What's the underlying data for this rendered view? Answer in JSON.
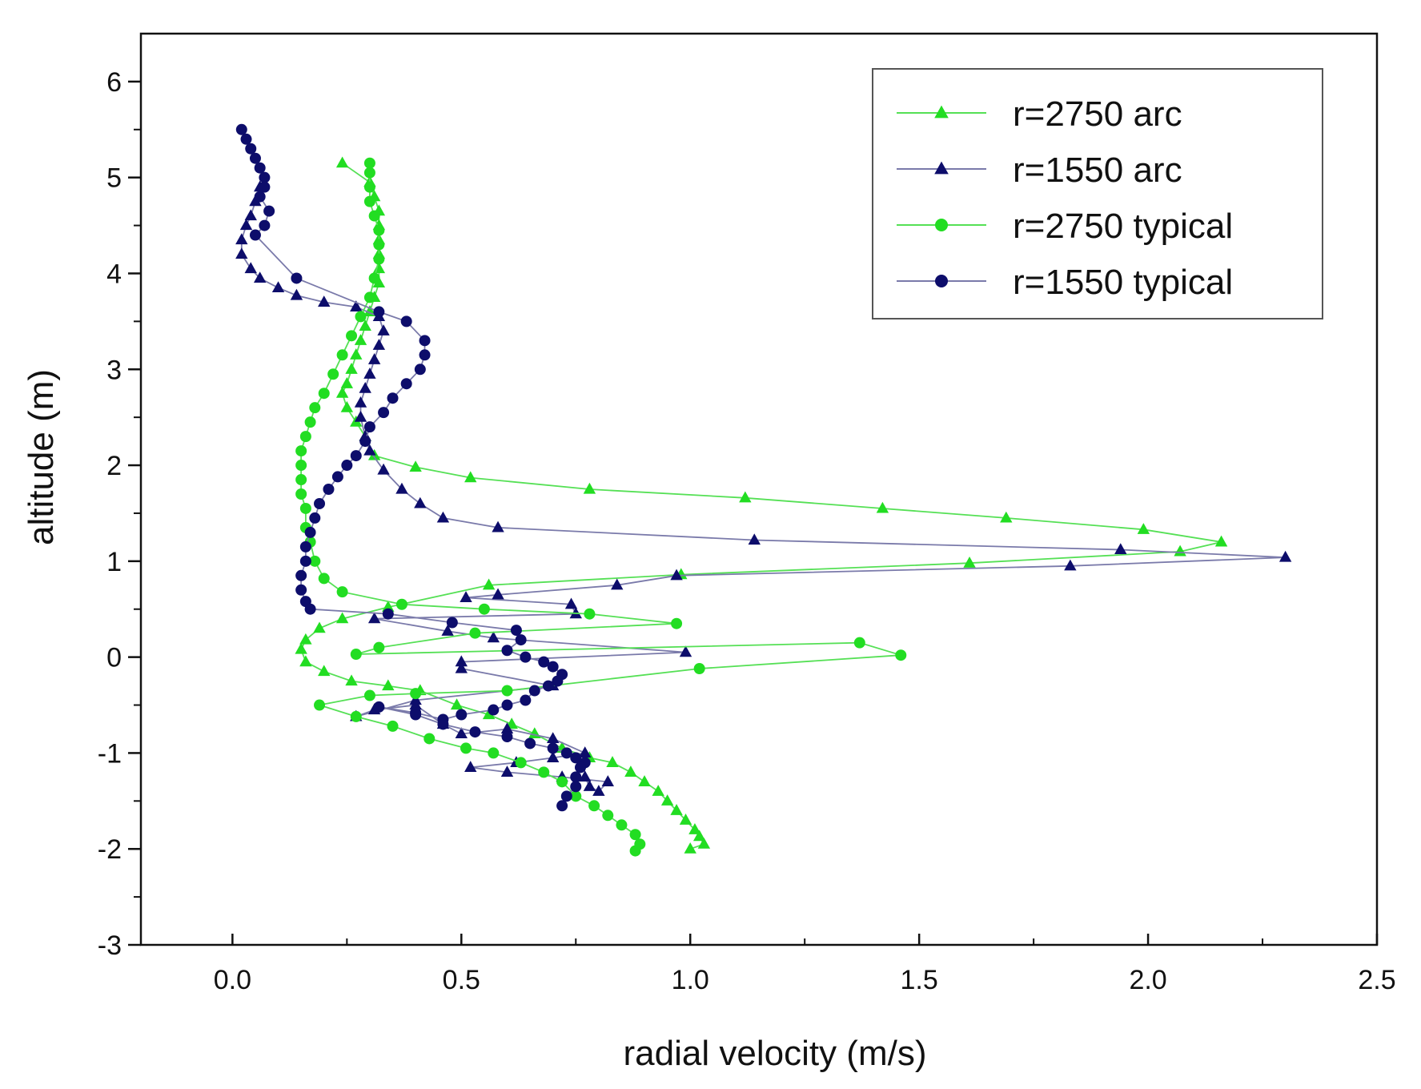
{
  "chart_data": {
    "type": "line",
    "title": "",
    "xlabel": "radial velocity (m/s)",
    "ylabel": "altitude (m)",
    "xlim": [
      -0.2,
      2.5
    ],
    "ylim": [
      -3,
      6.5
    ],
    "xticks": [
      0.0,
      0.5,
      1.0,
      1.5,
      2.0,
      2.5
    ],
    "xtick_labels": [
      "0.0",
      "0.5",
      "1.0",
      "1.5",
      "2.0",
      "2.5"
    ],
    "yticks": [
      -3,
      -2,
      -1,
      0,
      1,
      2,
      3,
      4,
      5,
      6
    ],
    "ytick_labels": [
      "-3",
      "-2",
      "-1",
      "0",
      "1",
      "2",
      "3",
      "4",
      "5",
      "6"
    ],
    "legend_position": "top-right",
    "series": [
      {
        "name": "r=2750 arc",
        "color": "#22dd22",
        "line_color": "#55e055",
        "marker": "triangle",
        "x": [
          0.24,
          0.3,
          0.31,
          0.32,
          0.32,
          0.32,
          0.32,
          0.32,
          0.32,
          0.31,
          0.3,
          0.29,
          0.28,
          0.27,
          0.26,
          0.25,
          0.24,
          0.25,
          0.27,
          0.29,
          0.31,
          0.4,
          0.52,
          0.78,
          1.12,
          1.42,
          1.69,
          1.99,
          2.16,
          2.07,
          1.61,
          0.98,
          0.56,
          0.34,
          0.24,
          0.19,
          0.16,
          0.15,
          0.16,
          0.2,
          0.26,
          0.34,
          0.41,
          0.49,
          0.56,
          0.61,
          0.66,
          0.72,
          0.78,
          0.83,
          0.87,
          0.9,
          0.93,
          0.95,
          0.97,
          0.99,
          1.01,
          1.02,
          1.03,
          1.0
        ],
        "y": [
          5.15,
          4.95,
          4.8,
          4.65,
          4.5,
          4.35,
          4.2,
          4.05,
          3.9,
          3.75,
          3.6,
          3.45,
          3.3,
          3.15,
          3.0,
          2.85,
          2.75,
          2.6,
          2.45,
          2.3,
          2.1,
          1.98,
          1.87,
          1.75,
          1.66,
          1.55,
          1.45,
          1.33,
          1.2,
          1.1,
          0.98,
          0.86,
          0.75,
          0.52,
          0.4,
          0.3,
          0.18,
          0.08,
          -0.05,
          -0.15,
          -0.25,
          -0.3,
          -0.35,
          -0.5,
          -0.6,
          -0.7,
          -0.8,
          -0.95,
          -1.05,
          -1.1,
          -1.2,
          -1.3,
          -1.4,
          -1.5,
          -1.6,
          -1.7,
          -1.8,
          -1.87,
          -1.95,
          -2.0
        ]
      },
      {
        "name": "r=1550 arc",
        "color": "#0d0d6b",
        "line_color": "#7a7aaa",
        "marker": "triangle",
        "x": [
          0.06,
          0.05,
          0.04,
          0.03,
          0.02,
          0.02,
          0.04,
          0.06,
          0.1,
          0.14,
          0.2,
          0.27,
          0.32,
          0.33,
          0.32,
          0.31,
          0.3,
          0.29,
          0.28,
          0.28,
          0.29,
          0.3,
          0.33,
          0.37,
          0.41,
          0.46,
          0.58,
          1.14,
          1.94,
          2.3,
          1.83,
          0.97,
          0.84,
          0.58,
          0.51,
          0.74,
          0.75,
          0.31,
          0.47,
          0.57,
          0.99,
          0.5,
          0.5,
          0.7,
          0.4,
          0.27,
          0.31,
          0.4,
          0.46,
          0.5,
          0.6,
          0.7,
          0.77,
          0.7,
          0.62,
          0.52,
          0.6,
          0.72,
          0.82,
          0.8,
          0.78,
          0.77
        ],
        "y": [
          4.9,
          4.75,
          4.6,
          4.5,
          4.35,
          4.2,
          4.05,
          3.95,
          3.85,
          3.77,
          3.7,
          3.65,
          3.55,
          3.4,
          3.25,
          3.1,
          2.95,
          2.8,
          2.65,
          2.5,
          2.3,
          2.15,
          1.95,
          1.75,
          1.6,
          1.45,
          1.35,
          1.22,
          1.12,
          1.04,
          0.95,
          0.85,
          0.75,
          0.65,
          0.62,
          0.55,
          0.45,
          0.4,
          0.27,
          0.2,
          0.05,
          -0.05,
          -0.12,
          -0.3,
          -0.45,
          -0.62,
          -0.55,
          -0.5,
          -0.7,
          -0.8,
          -0.75,
          -0.85,
          -1.0,
          -1.05,
          -1.1,
          -1.15,
          -1.2,
          -1.25,
          -1.3,
          -1.4,
          -1.35,
          -1.25
        ]
      },
      {
        "name": "r=2750 typical",
        "color": "#22dd22",
        "line_color": "#55e055",
        "marker": "circle",
        "x": [
          0.3,
          0.3,
          0.3,
          0.3,
          0.31,
          0.32,
          0.32,
          0.32,
          0.31,
          0.3,
          0.28,
          0.26,
          0.24,
          0.22,
          0.2,
          0.18,
          0.17,
          0.16,
          0.15,
          0.15,
          0.15,
          0.15,
          0.16,
          0.16,
          0.17,
          0.18,
          0.2,
          0.24,
          0.37,
          0.55,
          0.78,
          0.97,
          0.53,
          0.32,
          0.27,
          1.37,
          1.46,
          1.02,
          0.6,
          0.4,
          0.3,
          0.19,
          0.27,
          0.35,
          0.43,
          0.51,
          0.57,
          0.63,
          0.68,
          0.72,
          0.75,
          0.79,
          0.82,
          0.85,
          0.88,
          0.89,
          0.88
        ],
        "y": [
          5.15,
          5.05,
          4.9,
          4.75,
          4.6,
          4.45,
          4.3,
          4.15,
          3.95,
          3.75,
          3.55,
          3.35,
          3.15,
          2.95,
          2.75,
          2.6,
          2.45,
          2.3,
          2.15,
          2.0,
          1.85,
          1.7,
          1.55,
          1.35,
          1.2,
          1.0,
          0.82,
          0.68,
          0.55,
          0.5,
          0.45,
          0.35,
          0.25,
          0.1,
          0.03,
          0.15,
          0.02,
          -0.12,
          -0.35,
          -0.38,
          -0.4,
          -0.5,
          -0.62,
          -0.72,
          -0.85,
          -0.95,
          -1.0,
          -1.1,
          -1.2,
          -1.3,
          -1.45,
          -1.55,
          -1.65,
          -1.75,
          -1.85,
          -1.95,
          -2.02
        ]
      },
      {
        "name": "r=1550 typical",
        "color": "#0d0d6b",
        "line_color": "#7a7aaa",
        "marker": "circle",
        "x": [
          0.02,
          0.03,
          0.04,
          0.05,
          0.06,
          0.07,
          0.07,
          0.06,
          0.08,
          0.07,
          0.05,
          0.14,
          0.32,
          0.38,
          0.42,
          0.42,
          0.41,
          0.38,
          0.35,
          0.33,
          0.3,
          0.29,
          0.27,
          0.25,
          0.23,
          0.21,
          0.19,
          0.18,
          0.17,
          0.16,
          0.16,
          0.15,
          0.15,
          0.16,
          0.17,
          0.34,
          0.48,
          0.62,
          0.63,
          0.6,
          0.64,
          0.68,
          0.7,
          0.72,
          0.71,
          0.69,
          0.66,
          0.64,
          0.6,
          0.57,
          0.5,
          0.46,
          0.4,
          0.32,
          0.4,
          0.46,
          0.53,
          0.6,
          0.65,
          0.7,
          0.73,
          0.75,
          0.77,
          0.76,
          0.75,
          0.75,
          0.73,
          0.72
        ],
        "y": [
          5.5,
          5.4,
          5.3,
          5.2,
          5.1,
          5.0,
          4.9,
          4.8,
          4.65,
          4.5,
          4.4,
          3.95,
          3.6,
          3.5,
          3.3,
          3.15,
          3.0,
          2.85,
          2.7,
          2.55,
          2.4,
          2.25,
          2.1,
          2.0,
          1.88,
          1.75,
          1.6,
          1.45,
          1.3,
          1.15,
          1.0,
          0.85,
          0.7,
          0.58,
          0.5,
          0.45,
          0.36,
          0.28,
          0.18,
          0.07,
          0.0,
          -0.05,
          -0.1,
          -0.18,
          -0.25,
          -0.3,
          -0.35,
          -0.45,
          -0.5,
          -0.55,
          -0.6,
          -0.65,
          -0.58,
          -0.52,
          -0.6,
          -0.7,
          -0.78,
          -0.83,
          -0.9,
          -0.95,
          -1.0,
          -1.05,
          -1.1,
          -1.15,
          -1.25,
          -1.35,
          -1.45,
          -1.55
        ]
      }
    ]
  }
}
